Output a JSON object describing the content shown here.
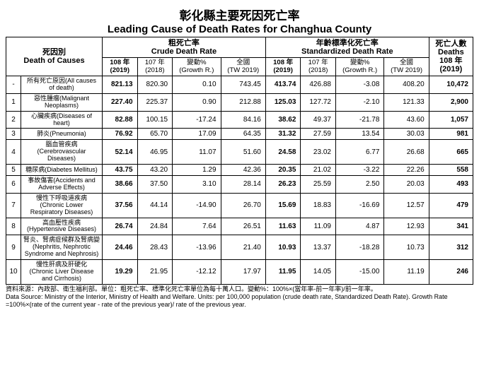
{
  "title_zh": "彰化縣主要死因死亡率",
  "title_en": "Leading Cause of Death Rates for Changhua County",
  "header": {
    "cause_zh": "死因別",
    "cause_en": "Death of Causes",
    "crude_zh": "粗死亡率",
    "crude_en": "Crude Death Rate",
    "std_zh": "年齡標準化死亡率",
    "std_en": "Standardized Death Rate",
    "deaths_zh": "死亡人數",
    "deaths_en": "Deaths",
    "y108": "108 年",
    "y108p": "(2019)",
    "y107": "107 年",
    "y107p": "(2018)",
    "growth": "變動%",
    "growthp": "(Growth R.)",
    "tw": "全國",
    "twp": "(TW 2019)"
  },
  "rows": [
    {
      "rank": "-",
      "cause": "所有死亡原因(All causes of death)",
      "c108": "821.13",
      "c107": "820.30",
      "cg": "0.10",
      "ctw": "743.45",
      "s108": "413.74",
      "s107": "426.88",
      "sg": "-3.08",
      "stw": "408.20",
      "d": "10,472"
    },
    {
      "rank": "1",
      "cause": "惡性腫瘤(Malignant Neoplasms)",
      "c108": "227.40",
      "c107": "225.37",
      "cg": "0.90",
      "ctw": "212.88",
      "s108": "125.03",
      "s107": "127.72",
      "sg": "-2.10",
      "stw": "121.33",
      "d": "2,900"
    },
    {
      "rank": "2",
      "cause": "心臟疾病(Diseases of heart)",
      "c108": "82.88",
      "c107": "100.15",
      "cg": "-17.24",
      "ctw": "84.16",
      "s108": "38.62",
      "s107": "49.37",
      "sg": "-21.78",
      "stw": "43.60",
      "d": "1,057"
    },
    {
      "rank": "3",
      "cause": "肺炎(Pneumonia)",
      "c108": "76.92",
      "c107": "65.70",
      "cg": "17.09",
      "ctw": "64.35",
      "s108": "31.32",
      "s107": "27.59",
      "sg": "13.54",
      "stw": "30.03",
      "d": "981"
    },
    {
      "rank": "4",
      "cause": "腦血管疾病 (Cerebrovascular Diseases)",
      "c108": "52.14",
      "c107": "46.95",
      "cg": "11.07",
      "ctw": "51.60",
      "s108": "24.58",
      "s107": "23.02",
      "sg": "6.77",
      "stw": "26.68",
      "d": "665"
    },
    {
      "rank": "5",
      "cause": "糖尿病(Diabetes Mellitus)",
      "c108": "43.75",
      "c107": "43.20",
      "cg": "1.29",
      "ctw": "42.36",
      "s108": "20.35",
      "s107": "21.02",
      "sg": "-3.22",
      "stw": "22.26",
      "d": "558"
    },
    {
      "rank": "6",
      "cause": "事故傷害(Accidents and Adverse Effects)",
      "c108": "38.66",
      "c107": "37.50",
      "cg": "3.10",
      "ctw": "28.14",
      "s108": "26.23",
      "s107": "25.59",
      "sg": "2.50",
      "stw": "20.03",
      "d": "493"
    },
    {
      "rank": "7",
      "cause": "慢性下呼吸道疾病 (Chronic Lower Respiratory Diseases)",
      "c108": "37.56",
      "c107": "44.14",
      "cg": "-14.90",
      "ctw": "26.70",
      "s108": "15.69",
      "s107": "18.83",
      "sg": "-16.69",
      "stw": "12.57",
      "d": "479"
    },
    {
      "rank": "8",
      "cause": "高血壓性疾病 (Hypertensive Diseases)",
      "c108": "26.74",
      "c107": "24.84",
      "cg": "7.64",
      "ctw": "26.51",
      "s108": "11.63",
      "s107": "11.09",
      "sg": "4.87",
      "stw": "12.93",
      "d": "341"
    },
    {
      "rank": "9",
      "cause": "腎炎、腎病症候群及腎病變 (Nephritis, Nephrotic Syndrome and Nephrosis)",
      "c108": "24.46",
      "c107": "28.43",
      "cg": "-13.96",
      "ctw": "21.40",
      "s108": "10.93",
      "s107": "13.37",
      "sg": "-18.28",
      "stw": "10.73",
      "d": "312"
    },
    {
      "rank": "10",
      "cause": "慢性肝病及肝硬化 (Chronic Liver Disease and Cirrhosis)",
      "c108": "19.29",
      "c107": "21.95",
      "cg": "-12.12",
      "ctw": "17.97",
      "s108": "11.95",
      "s107": "14.05",
      "sg": "-15.00",
      "stw": "11.19",
      "d": "246"
    }
  ],
  "footnote_zh": "資料來源：內政部、衛生福利部。單位：粗死亡率、標準化死亡率單位為每十萬人口。變動%：100%×(當年率-前一年率)/前一年率。",
  "footnote_en": "Data Source: Ministry of the Interior, Ministry of Health and Welfare. Units: per 100,000 population (crude death rate, Standardized Death Rate). Growth Rate =100%×(rate of the current year - rate of the previous year)/ rate of the previous year."
}
